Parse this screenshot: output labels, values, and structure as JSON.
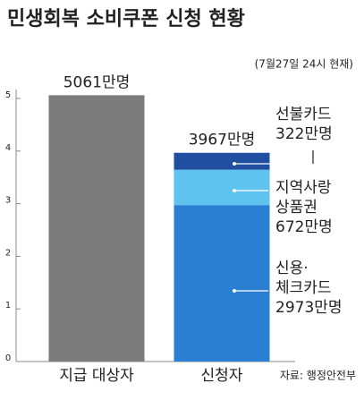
{
  "chart_data": {
    "type": "bar",
    "stacked": true,
    "title": "민생회복 소비쿠폰 신청 현황",
    "subtitle": "(7월27일 24시 현재)",
    "source": "자료: 행정안전부",
    "categories": [
      "지급 대상자",
      "신청자"
    ],
    "totals": [
      5.061,
      3.967
    ],
    "total_labels": [
      "5061만명",
      "3967만명"
    ],
    "series": [
      {
        "name": "지급 대상자",
        "color": "#7b7b7b",
        "values": [
          5.061,
          null
        ],
        "legend": false
      },
      {
        "name": "신용·\n체크카드",
        "color": "#2b7fd3",
        "values": [
          null,
          2.973
        ],
        "value_labels": [
          null,
          "2973만명"
        ]
      },
      {
        "name": "지역사랑\n상품권",
        "color": "#5ec3ef",
        "values": [
          null,
          0.672
        ],
        "value_labels": [
          null,
          "672만명"
        ]
      },
      {
        "name": "선불카드",
        "color": "#1f4f9e",
        "values": [
          null,
          0.322
        ],
        "value_labels": [
          null,
          "322만명"
        ]
      }
    ],
    "ylim": [
      0,
      5
    ],
    "yticks": [
      0,
      1,
      2,
      3,
      4,
      5
    ]
  }
}
